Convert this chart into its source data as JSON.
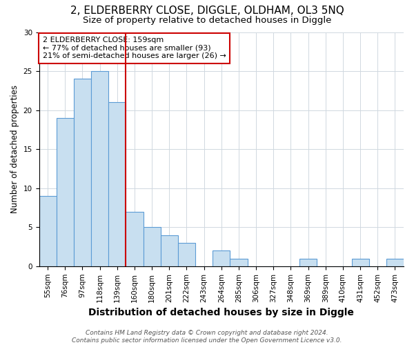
{
  "title": "2, ELDERBERRY CLOSE, DIGGLE, OLDHAM, OL3 5NQ",
  "subtitle": "Size of property relative to detached houses in Diggle",
  "xlabel": "Distribution of detached houses by size in Diggle",
  "ylabel": "Number of detached properties",
  "categories": [
    "55sqm",
    "76sqm",
    "97sqm",
    "118sqm",
    "139sqm",
    "160sqm",
    "180sqm",
    "201sqm",
    "222sqm",
    "243sqm",
    "264sqm",
    "285sqm",
    "306sqm",
    "327sqm",
    "348sqm",
    "369sqm",
    "389sqm",
    "410sqm",
    "431sqm",
    "452sqm",
    "473sqm"
  ],
  "values": [
    9,
    19,
    24,
    25,
    21,
    7,
    5,
    4,
    3,
    0,
    2,
    1,
    0,
    0,
    0,
    1,
    0,
    0,
    1,
    0,
    1
  ],
  "bar_color": "#c8dff0",
  "bar_edgecolor": "#5b9bd5",
  "vline_x": 4.5,
  "vline_color": "#cc0000",
  "annotation_text": "2 ELDERBERRY CLOSE: 159sqm\n← 77% of detached houses are smaller (93)\n21% of semi-detached houses are larger (26) →",
  "annotation_box_edgecolor": "#cc0000",
  "ylim": [
    0,
    30
  ],
  "yticks": [
    0,
    5,
    10,
    15,
    20,
    25,
    30
  ],
  "footer": "Contains HM Land Registry data © Crown copyright and database right 2024.\nContains public sector information licensed under the Open Government Licence v3.0.",
  "title_fontsize": 11,
  "subtitle_fontsize": 9.5,
  "xlabel_fontsize": 10,
  "ylabel_fontsize": 8.5,
  "tick_fontsize": 7.5,
  "annotation_fontsize": 8,
  "footer_fontsize": 6.5,
  "bg_color": "#ffffff",
  "plot_bg_color": "#ffffff",
  "grid_color": "#d0d8e0"
}
